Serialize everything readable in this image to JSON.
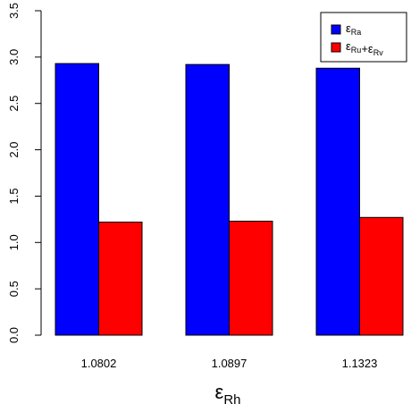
{
  "chart_data": {
    "type": "bar",
    "categories": [
      "1.0802",
      "1.0897",
      "1.1323"
    ],
    "xlabel": {
      "symbol": "ε",
      "sub": "Rh"
    },
    "ylabel": "",
    "ylim": [
      0,
      3.5
    ],
    "yticks": [
      "0.0",
      "0.5",
      "1.0",
      "1.5",
      "2.0",
      "2.5",
      "3.0",
      "3.5"
    ],
    "grid": false,
    "legend_position": "top-right",
    "series": [
      {
        "name": "εRa",
        "legend_parts": [
          {
            "symbol": "ε",
            "sub": "Ra"
          }
        ],
        "color": "#0000ff",
        "values": [
          2.93,
          2.92,
          2.88
        ]
      },
      {
        "name": "εRu + εRv",
        "legend_parts": [
          {
            "symbol": "ε",
            "sub": "Ru"
          },
          {
            "op": "+"
          },
          {
            "symbol": "ε",
            "sub": "Rv"
          }
        ],
        "color": "#ff0000",
        "values": [
          1.22,
          1.23,
          1.27
        ]
      }
    ]
  }
}
